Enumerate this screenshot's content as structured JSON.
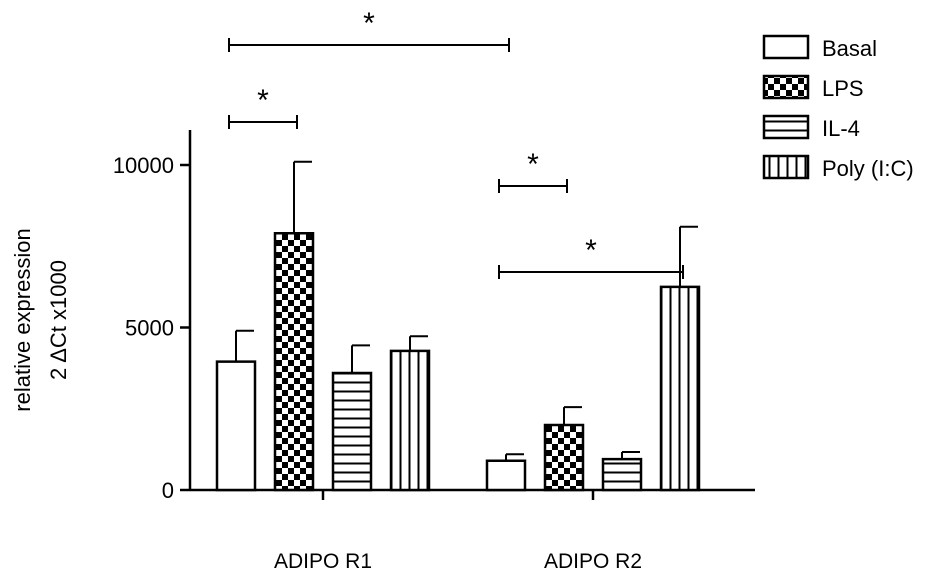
{
  "chart_data": {
    "type": "bar",
    "categories": [
      "ADIPO R1",
      "ADIPO R2"
    ],
    "ylabel": "relative expression",
    "ylabel_line2": "2 ΔCt x1000",
    "ylim": [
      0,
      11000
    ],
    "yticks": [
      0,
      5000,
      10000
    ],
    "grid": false,
    "legend_position": "top-right",
    "series": [
      {
        "name": "Basal",
        "pattern": "blank",
        "values": [
          3950,
          900
        ],
        "errors": [
          950,
          200
        ]
      },
      {
        "name": "LPS",
        "pattern": "checker",
        "values": [
          7900,
          2000
        ],
        "errors": [
          2200,
          550
        ]
      },
      {
        "name": "IL-4",
        "pattern": "horizontal",
        "values": [
          3600,
          950
        ],
        "errors": [
          850,
          220
        ]
      },
      {
        "name": "Poly (I:C)",
        "pattern": "vertical",
        "values": [
          4280,
          6250
        ],
        "errors": [
          450,
          1850
        ]
      }
    ],
    "significance": [
      {
        "label": "*",
        "from": [
          0,
          0
        ],
        "to": [
          1,
          0
        ]
      },
      {
        "label": "*",
        "from": [
          0,
          0
        ],
        "to": [
          0,
          1
        ]
      },
      {
        "label": "*",
        "from": [
          1,
          0
        ],
        "to": [
          1,
          1
        ]
      },
      {
        "label": "*",
        "from": [
          1,
          0
        ],
        "to": [
          1,
          3
        ]
      }
    ],
    "colors": {
      "stroke": "#000000",
      "fill": "#ffffff"
    }
  }
}
